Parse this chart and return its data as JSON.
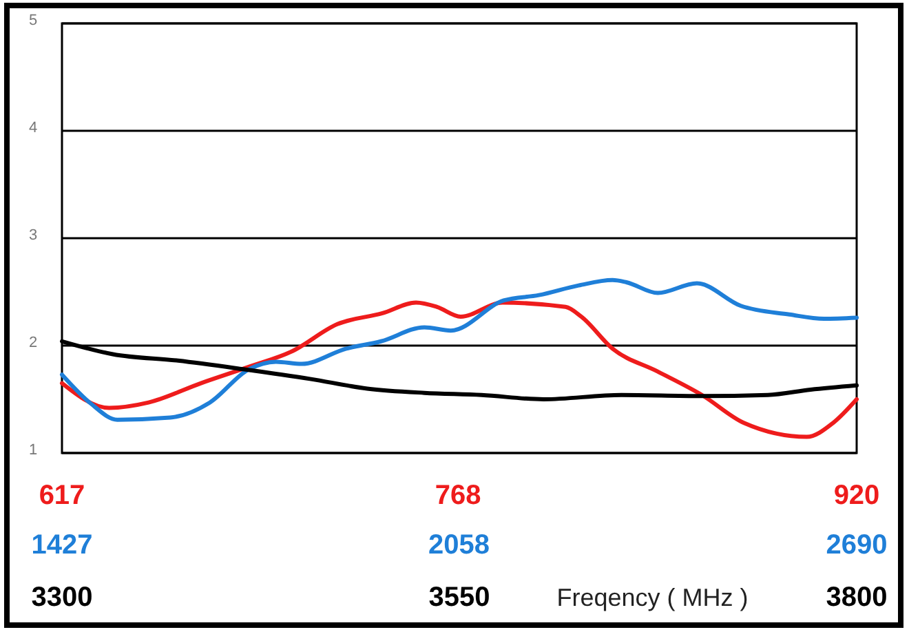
{
  "chart_data": [
    {
      "type": "line",
      "xlim": [
        617,
        920
      ],
      "xticks": [
        617,
        768,
        920
      ],
      "ylim": [
        1,
        5
      ],
      "yticks": [
        1,
        2,
        3,
        4,
        5
      ],
      "grid": "y",
      "series": [
        {
          "color": "#ee1c1c",
          "x": [
            617,
            635,
            650,
            670,
            688,
            705,
            722,
            739,
            752,
            760,
            769,
            785,
            809,
            815,
            827,
            844,
            861,
            877,
            901,
            911,
            920
          ],
          "values": [
            1.65,
            1.42,
            1.47,
            1.65,
            1.8,
            1.95,
            2.2,
            2.3,
            2.4,
            2.36,
            2.27,
            2.4,
            2.36,
            2.27,
            1.97,
            1.76,
            1.54,
            1.28,
            1.15,
            1.28,
            1.5
          ]
        }
      ]
    },
    {
      "type": "line",
      "xlim": [
        1427,
        2690
      ],
      "xticks": [
        1427,
        2058,
        2690
      ],
      "ylim": [
        1,
        5
      ],
      "tick_labels": "x",
      "series": [
        {
          "color": "#1f7fd8",
          "x": [
            1427,
            1473,
            1515,
            1599,
            1662,
            1724,
            1767,
            1808,
            1878,
            1934,
            2003,
            2045,
            2129,
            2185,
            2248,
            2302,
            2324,
            2374,
            2436,
            2506,
            2583,
            2638,
            2690
          ],
          "values": [
            1.73,
            1.46,
            1.31,
            1.33,
            1.47,
            1.78,
            1.85,
            1.83,
            1.97,
            2.04,
            2.17,
            2.14,
            2.42,
            2.47,
            2.56,
            2.61,
            2.59,
            2.49,
            2.58,
            2.37,
            2.29,
            2.25,
            2.26
          ]
        }
      ]
    },
    {
      "type": "line",
      "xlabel": "Freqency ( MHz )",
      "xlim": [
        3300,
        3800
      ],
      "xticks": [
        3300,
        3550,
        3800
      ],
      "ylim": [
        1,
        5
      ],
      "tick_labels": "x",
      "series": [
        {
          "color": "#000000",
          "x": [
            3300,
            3332,
            3373,
            3414,
            3456,
            3492,
            3528,
            3564,
            3603,
            3652,
            3702,
            3744,
            3771,
            3800
          ],
          "values": [
            2.04,
            1.92,
            1.86,
            1.78,
            1.69,
            1.6,
            1.56,
            1.54,
            1.5,
            1.54,
            1.53,
            1.54,
            1.59,
            1.63
          ]
        }
      ]
    }
  ]
}
